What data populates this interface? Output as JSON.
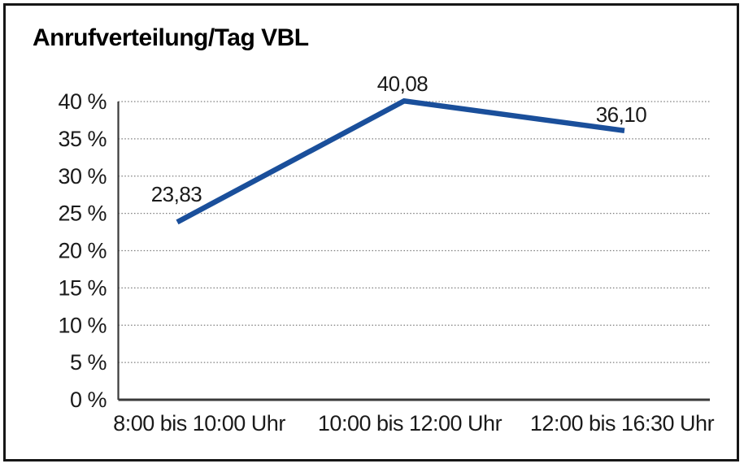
{
  "chart_data": {
    "type": "line",
    "title": "Anrufverteilung/Tag VBL",
    "categories": [
      "8:00 bis 10:00 Uhr",
      "10:00 bis 12:00 Uhr",
      "12:00 bis 16:30 Uhr"
    ],
    "series": [
      {
        "name": "Anrufverteilung/Tag VBL",
        "values": [
          23.83,
          40.08,
          36.1
        ]
      }
    ],
    "data_labels": [
      "23,83",
      "40,08",
      "36,10"
    ],
    "xlabel": "",
    "ylabel": "",
    "ylim": [
      0,
      40
    ],
    "ytick_step": 5,
    "ytick_labels": [
      "0 %",
      "5 %",
      "10 %",
      "15 %",
      "20 %",
      "25 %",
      "30 %",
      "35 %",
      "40 %"
    ],
    "grid": "horizontal-dotted",
    "legend": "none",
    "line_color": "#1a4f9b",
    "grid_color": "#7d7d7d",
    "axis_color": "#3a3a3a",
    "text_color": "#1a1a1a",
    "frame_color": "#161616",
    "background_color": "#ffffff"
  }
}
